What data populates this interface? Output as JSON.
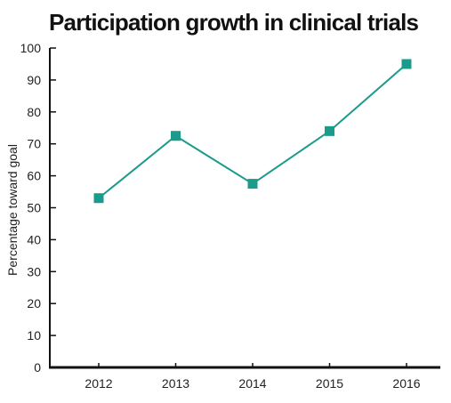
{
  "chart_data": {
    "type": "line",
    "title": "Participation growth in clinical trials",
    "xlabel": "",
    "ylabel": "Percentage toward goal",
    "categories": [
      "2012",
      "2013",
      "2014",
      "2015",
      "2016"
    ],
    "series": [
      {
        "values": [
          53,
          72.5,
          57.5,
          74,
          95
        ]
      }
    ],
    "ylim": [
      0,
      100
    ],
    "yticks": [
      0,
      10,
      20,
      30,
      40,
      50,
      60,
      70,
      80,
      90,
      100
    ],
    "grid": false,
    "legend": "none",
    "color": "#1a9b8c",
    "marker": "square"
  }
}
